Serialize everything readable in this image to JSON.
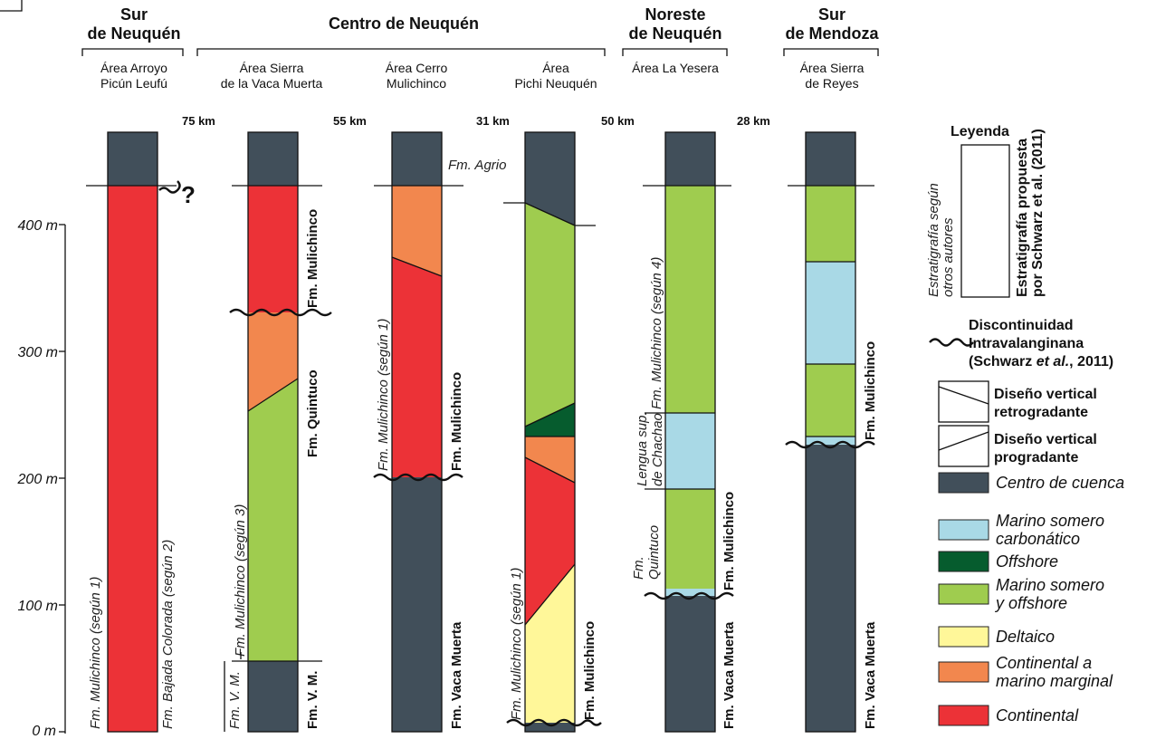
{
  "regions": {
    "sur_neuquen": [
      "Sur",
      "de Neuquén"
    ],
    "centro": "Centro de Neuquén",
    "noreste": [
      "Noreste",
      "de Neuquén"
    ],
    "sur_mendoza": [
      "Sur",
      "de Mendoza"
    ]
  },
  "areas": {
    "arroyo": [
      "Área Arroyo",
      "Picún Leufú"
    ],
    "vaca_muerta": [
      "Área Sierra",
      "de la Vaca Muerta"
    ],
    "cerro": [
      "Área Cerro",
      "Mulichinco"
    ],
    "pichi": [
      "Área",
      "Pichi Neuquén"
    ],
    "yesera": "Área La Yesera",
    "reyes": [
      "Área Sierra",
      "de Reyes"
    ]
  },
  "distances": [
    "75 km",
    "55 km",
    "31 km",
    "50 km",
    "28 km"
  ],
  "scale_ticks": [
    "400 m",
    "300 m",
    "200 m",
    "100 m",
    "0 m"
  ],
  "question_mark": "?",
  "column_labels": {
    "arroyo_left": "Fm. Mulichinco (según 1)",
    "arroyo_right": "Fm. Bajada Colorada (según 2)",
    "vm_left_long": "Fm. Mulichinco (según 3)",
    "vm_left_short": "Fm. V. M.",
    "vm_right_top": "Fm. Mulichinco",
    "vm_right_mid": "Fm. Quintuco",
    "vm_right_bot": "Fm. V. M.",
    "cerro_left": "Fm. Mulichinco (según 1)",
    "cerro_agrio": "Fm. Agrio",
    "cerro_right_top": "Fm. Mulichinco",
    "cerro_right_bot": "Fm. Vaca Muerta",
    "pichi_left": "Fm. Mulichinco (según 1)",
    "pichi_right": "Fm. Mulichinco",
    "yesera_left_top": "Fm. Mulichinco (según 4)",
    "yesera_left_mid": [
      "Lengua sup.",
      "de Chachao"
    ],
    "yesera_left_bot": [
      "Fm.",
      "Quintuco"
    ],
    "yesera_right_top": "Fm. Mulichinco",
    "yesera_right_bot": "Fm. Vaca Muerta",
    "reyes_right_top": "Fm. Mulichinco",
    "reyes_right_bot": "Fm. Vaca Muerta"
  },
  "legend": {
    "title": "Leyenda",
    "left_text": [
      "Estratigrafía según",
      "otros autores"
    ],
    "right_text": [
      "Estratigrafía propuesta",
      "por Schwarz et al. (2011)"
    ],
    "discontinuity": [
      "Discontinuidad",
      "Intravalanginana",
      "(Schwarz ",
      "et al.",
      ", 2011)"
    ],
    "retro": [
      "Diseño vertical",
      "retrogradante"
    ],
    "pro": [
      "Diseño vertical",
      "progradante"
    ],
    "facies": [
      {
        "label": [
          "Centro de cuenca"
        ],
        "color": "#414f5a"
      },
      {
        "label": [
          "Marino somero",
          "carbonático"
        ],
        "color": "#a9d9e6"
      },
      {
        "label": [
          "Offshore"
        ],
        "color": "#065c2e"
      },
      {
        "label": [
          "Marino somero",
          "y offshore"
        ],
        "color": "#9fcc4f"
      },
      {
        "label": [
          "Deltaico"
        ],
        "color": "#fff799"
      },
      {
        "label": [
          "Continental a",
          "marino marginal"
        ],
        "color": "#f2874e"
      },
      {
        "label": [
          "Continental"
        ],
        "color": "#ec3237"
      }
    ]
  }
}
